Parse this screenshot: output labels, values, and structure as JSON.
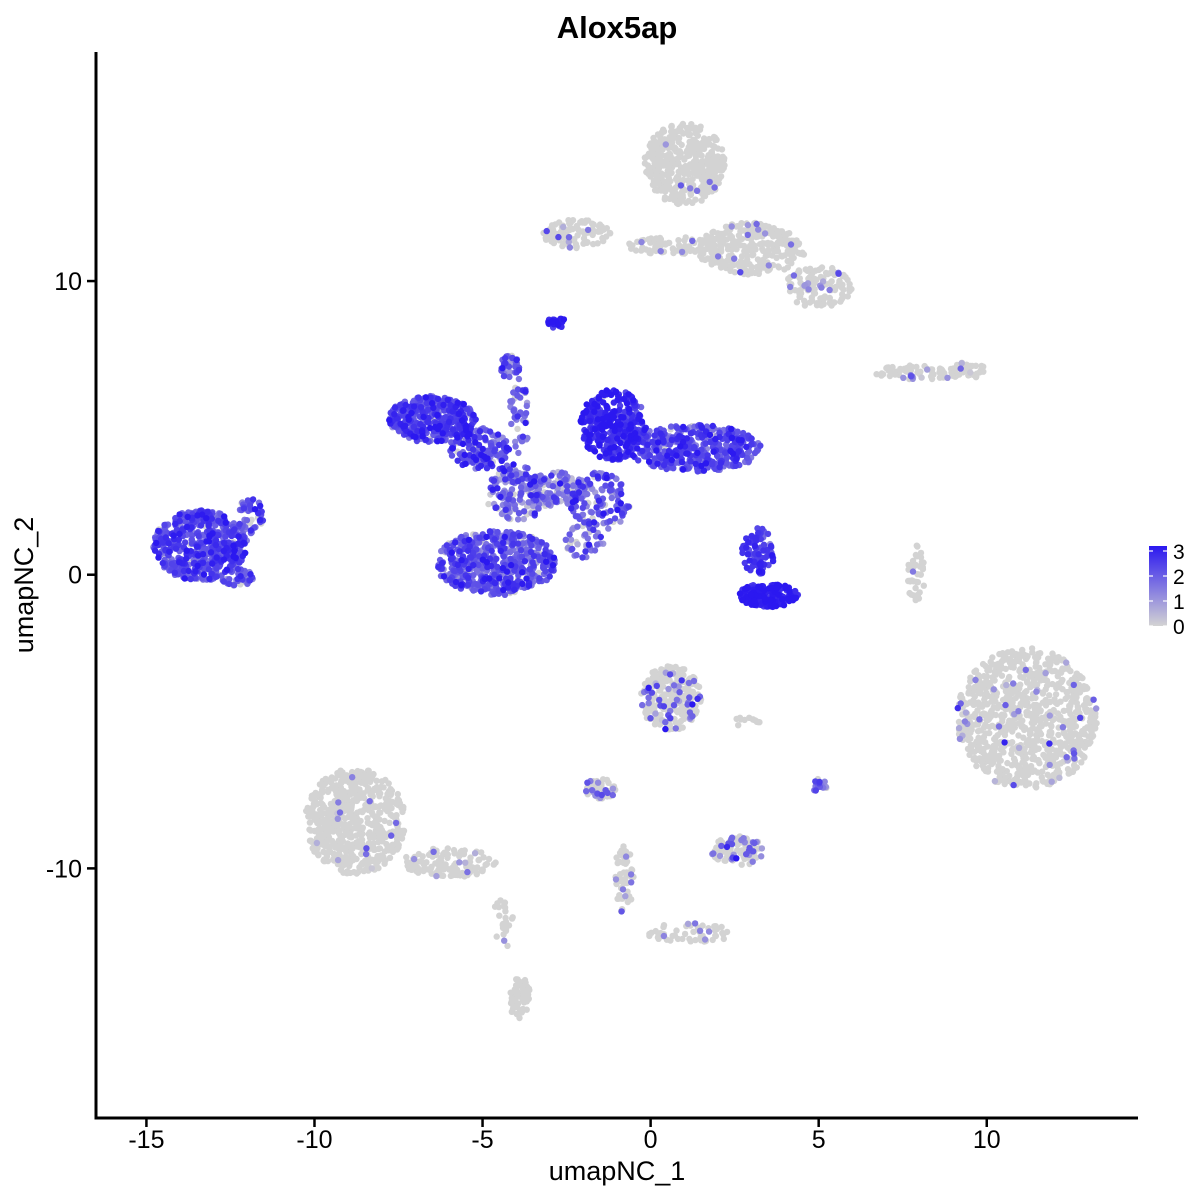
{
  "chart_data": {
    "type": "scatter",
    "title": "Alox5ap",
    "xlabel": "umapNC_1",
    "ylabel": "umapNC_2",
    "xlim": [
      -16.5,
      14.5
    ],
    "ylim": [
      -18.5,
      17.8
    ],
    "x_ticks": [
      -15,
      -10,
      -5,
      0,
      5,
      10
    ],
    "x_tick_labels": [
      "-15",
      "-10",
      "-5",
      "0",
      "5",
      "10"
    ],
    "y_ticks": [
      -10,
      0,
      10
    ],
    "y_tick_labels": [
      "-10",
      "0",
      "10"
    ],
    "grid": false,
    "legend": {
      "placement": "right",
      "type": "colorbar",
      "min": 0,
      "max": 3.2,
      "ticks": [
        0,
        1,
        2,
        3
      ],
      "tick_labels": [
        "0",
        "1",
        "2",
        "3"
      ],
      "low_color": "#d3d3d3",
      "high_color": "#2b18f0"
    },
    "clusters": [
      {
        "cx": -13.4,
        "cy": 1.0,
        "rx": 1.4,
        "ry": 1.2,
        "n": 520,
        "expr": 2.3,
        "expr_sd": 0.5,
        "frac_expr": 0.97
      },
      {
        "cx": -11.9,
        "cy": 2.0,
        "rx": 0.4,
        "ry": 0.6,
        "n": 50,
        "expr": 2.1,
        "expr_sd": 0.5,
        "frac_expr": 0.9
      },
      {
        "cx": -12.3,
        "cy": -0.1,
        "rx": 0.5,
        "ry": 0.3,
        "n": 40,
        "expr": 2.1,
        "expr_sd": 0.5,
        "frac_expr": 0.9
      },
      {
        "cx": -6.5,
        "cy": 5.3,
        "rx": 1.3,
        "ry": 0.8,
        "n": 380,
        "expr": 2.4,
        "expr_sd": 0.5,
        "frac_expr": 0.97
      },
      {
        "cx": -5.1,
        "cy": 4.3,
        "rx": 0.9,
        "ry": 0.7,
        "n": 140,
        "expr": 2.2,
        "expr_sd": 0.6,
        "frac_expr": 0.9
      },
      {
        "cx": -4.6,
        "cy": 0.4,
        "rx": 1.8,
        "ry": 1.1,
        "n": 560,
        "expr": 2.1,
        "expr_sd": 0.6,
        "frac_expr": 0.93
      },
      {
        "cx": -4.0,
        "cy": 2.8,
        "rx": 0.9,
        "ry": 1.0,
        "n": 160,
        "expr": 1.7,
        "expr_sd": 0.7,
        "frac_expr": 0.85
      },
      {
        "cx": -2.8,
        "cy": 2.9,
        "rx": 0.9,
        "ry": 0.6,
        "n": 120,
        "expr": 1.5,
        "expr_sd": 0.8,
        "frac_expr": 0.8
      },
      {
        "cx": -4.2,
        "cy": 7.1,
        "rx": 0.3,
        "ry": 0.4,
        "n": 35,
        "expr": 2.0,
        "expr_sd": 0.5,
        "frac_expr": 0.95
      },
      {
        "cx": -3.9,
        "cy": 5.4,
        "rx": 0.3,
        "ry": 1.3,
        "n": 45,
        "expr": 2.0,
        "expr_sd": 0.6,
        "frac_expr": 0.9
      },
      {
        "cx": -2.8,
        "cy": 8.6,
        "rx": 0.25,
        "ry": 0.2,
        "n": 30,
        "expr": 3.0,
        "expr_sd": 0.3,
        "frac_expr": 1.0
      },
      {
        "cx": -1.1,
        "cy": 5.1,
        "rx": 1.0,
        "ry": 1.2,
        "n": 330,
        "expr": 2.8,
        "expr_sd": 0.4,
        "frac_expr": 0.98
      },
      {
        "cx": 1.3,
        "cy": 4.3,
        "rx": 2.0,
        "ry": 0.8,
        "n": 420,
        "expr": 2.3,
        "expr_sd": 0.5,
        "frac_expr": 0.97
      },
      {
        "cx": -1.5,
        "cy": 2.5,
        "rx": 0.9,
        "ry": 1.0,
        "n": 120,
        "expr": 2.1,
        "expr_sd": 0.6,
        "frac_expr": 0.9
      },
      {
        "cx": -2.0,
        "cy": 1.1,
        "rx": 0.6,
        "ry": 0.6,
        "n": 40,
        "expr": 1.6,
        "expr_sd": 0.6,
        "frac_expr": 0.85
      },
      {
        "cx": 3.5,
        "cy": -0.7,
        "rx": 0.9,
        "ry": 0.4,
        "n": 190,
        "expr": 3.0,
        "expr_sd": 0.3,
        "frac_expr": 1.0
      },
      {
        "cx": 3.2,
        "cy": 0.8,
        "rx": 0.5,
        "ry": 0.8,
        "n": 80,
        "expr": 2.6,
        "expr_sd": 0.4,
        "frac_expr": 0.98
      },
      {
        "cx": 1.0,
        "cy": 14.0,
        "rx": 1.2,
        "ry": 1.4,
        "n": 420,
        "expr": 1.5,
        "expr_sd": 0.6,
        "frac_expr": 0.015
      },
      {
        "cx": 3.0,
        "cy": 11.1,
        "rx": 1.6,
        "ry": 0.9,
        "n": 300,
        "expr": 1.5,
        "expr_sd": 0.6,
        "frac_expr": 0.035
      },
      {
        "cx": -2.2,
        "cy": 11.6,
        "rx": 1.0,
        "ry": 0.5,
        "n": 110,
        "expr": 1.5,
        "expr_sd": 0.6,
        "frac_expr": 0.04
      },
      {
        "cx": 0.8,
        "cy": 11.2,
        "rx": 1.5,
        "ry": 0.3,
        "n": 90,
        "expr": 1.3,
        "expr_sd": 0.6,
        "frac_expr": 0.04
      },
      {
        "cx": 5.0,
        "cy": 9.8,
        "rx": 1.0,
        "ry": 0.7,
        "n": 120,
        "expr": 1.4,
        "expr_sd": 0.6,
        "frac_expr": 0.08
      },
      {
        "cx": 8.0,
        "cy": 6.9,
        "rx": 1.4,
        "ry": 0.25,
        "n": 70,
        "expr": 1.3,
        "expr_sd": 0.6,
        "frac_expr": 0.08
      },
      {
        "cx": 9.5,
        "cy": 7.0,
        "rx": 0.5,
        "ry": 0.3,
        "n": 35,
        "expr": 1.2,
        "expr_sd": 0.6,
        "frac_expr": 0.05
      },
      {
        "cx": 7.9,
        "cy": 0.0,
        "rx": 0.25,
        "ry": 1.0,
        "n": 40,
        "expr": 1.3,
        "expr_sd": 0.6,
        "frac_expr": 0.05
      },
      {
        "cx": 11.2,
        "cy": -4.9,
        "rx": 2.1,
        "ry": 2.4,
        "n": 900,
        "expr": 1.4,
        "expr_sd": 0.6,
        "frac_expr": 0.035
      },
      {
        "cx": -8.8,
        "cy": -8.4,
        "rx": 1.5,
        "ry": 1.8,
        "n": 600,
        "expr": 1.3,
        "expr_sd": 0.6,
        "frac_expr": 0.02
      },
      {
        "cx": -6.0,
        "cy": -9.8,
        "rx": 1.4,
        "ry": 0.5,
        "n": 130,
        "expr": 1.3,
        "expr_sd": 0.6,
        "frac_expr": 0.04
      },
      {
        "cx": -3.9,
        "cy": -14.4,
        "rx": 0.35,
        "ry": 0.7,
        "n": 60,
        "expr": 1.2,
        "expr_sd": 0.6,
        "frac_expr": 0.03
      },
      {
        "cx": -4.4,
        "cy": -11.8,
        "rx": 0.3,
        "ry": 1.1,
        "n": 25,
        "expr": 1.2,
        "expr_sd": 0.6,
        "frac_expr": 0.03
      },
      {
        "cx": 0.6,
        "cy": -4.2,
        "rx": 0.9,
        "ry": 1.1,
        "n": 250,
        "expr": 1.7,
        "expr_sd": 0.6,
        "frac_expr": 0.17
      },
      {
        "cx": -1.5,
        "cy": -7.3,
        "rx": 0.5,
        "ry": 0.35,
        "n": 55,
        "expr": 1.6,
        "expr_sd": 0.6,
        "frac_expr": 0.18
      },
      {
        "cx": 2.6,
        "cy": -9.4,
        "rx": 0.8,
        "ry": 0.5,
        "n": 90,
        "expr": 1.7,
        "expr_sd": 0.6,
        "frac_expr": 0.22
      },
      {
        "cx": 1.2,
        "cy": -12.2,
        "rx": 1.3,
        "ry": 0.35,
        "n": 55,
        "expr": 1.3,
        "expr_sd": 0.6,
        "frac_expr": 0.06
      },
      {
        "cx": -0.8,
        "cy": -10.4,
        "rx": 0.3,
        "ry": 1.2,
        "n": 55,
        "expr": 1.3,
        "expr_sd": 0.6,
        "frac_expr": 0.12
      },
      {
        "cx": 5.0,
        "cy": -7.2,
        "rx": 0.25,
        "ry": 0.25,
        "n": 18,
        "expr": 1.7,
        "expr_sd": 0.5,
        "frac_expr": 0.5
      },
      {
        "cx": 2.8,
        "cy": -5.0,
        "rx": 0.5,
        "ry": 0.15,
        "n": 12,
        "expr": 1.3,
        "expr_sd": 0.6,
        "frac_expr": 0.1
      }
    ]
  }
}
